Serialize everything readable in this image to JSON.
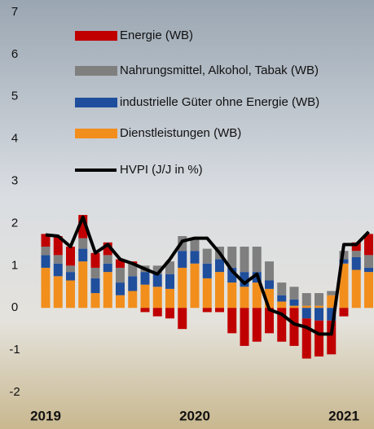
{
  "chart_data": {
    "type": "bar",
    "categories": [
      "2019",
      null,
      null,
      null,
      null,
      null,
      null,
      null,
      null,
      null,
      null,
      null,
      "2020",
      null,
      null,
      null,
      null,
      null,
      null,
      null,
      null,
      null,
      null,
      null,
      "2021",
      null,
      null
    ],
    "series": [
      {
        "name": "Energie (WB)",
        "color": "#c00000",
        "values": [
          0.3,
          0.45,
          0.45,
          0.55,
          0.35,
          0.3,
          0.2,
          0.05,
          -0.1,
          -0.2,
          -0.25,
          -0.5,
          0.0,
          -0.1,
          -0.1,
          -0.6,
          -0.9,
          -0.8,
          -0.6,
          -0.8,
          -0.9,
          -0.95,
          -0.85,
          -0.8,
          -0.2,
          0.2,
          0.5
        ]
      },
      {
        "name": "Nahrungsmittel, Alkohol, Tabak (WB)",
        "color": "#7f7f7f",
        "values": [
          0.2,
          0.2,
          0.15,
          0.25,
          0.25,
          0.2,
          0.35,
          0.3,
          0.15,
          0.2,
          0.3,
          0.35,
          0.3,
          0.35,
          0.3,
          0.5,
          0.6,
          0.6,
          0.45,
          0.3,
          0.3,
          0.3,
          0.3,
          0.1,
          0.2,
          0.15,
          0.3
        ]
      },
      {
        "name": "industrielle Güter ohne Energie (WB)",
        "color": "#1f4e9c",
        "values": [
          0.3,
          0.3,
          0.2,
          0.3,
          0.35,
          0.2,
          0.3,
          0.35,
          0.3,
          0.3,
          0.35,
          0.4,
          0.3,
          0.35,
          0.3,
          0.35,
          0.35,
          0.25,
          0.2,
          0.15,
          0.15,
          -0.25,
          -0.3,
          -0.3,
          0.1,
          0.3,
          0.1
        ]
      },
      {
        "name": "Dienstleistungen (WB)",
        "color": "#f28e1c",
        "values": [
          0.95,
          0.75,
          0.65,
          1.1,
          0.35,
          0.85,
          0.3,
          0.4,
          0.55,
          0.5,
          0.45,
          0.95,
          1.05,
          0.7,
          0.85,
          0.6,
          0.5,
          0.6,
          0.45,
          0.15,
          0.05,
          0.05,
          0.05,
          0.3,
          1.05,
          0.9,
          0.85
        ]
      },
      {
        "name": "HVPI (J/J in %)",
        "color": "#000000",
        "type": "line",
        "values": [
          1.73,
          1.7,
          1.45,
          2.15,
          1.3,
          1.5,
          1.15,
          1.05,
          0.92,
          0.8,
          1.15,
          1.58,
          1.65,
          1.65,
          1.3,
          0.88,
          0.58,
          0.8,
          -0.04,
          -0.15,
          -0.38,
          -0.46,
          -0.62,
          -0.62,
          1.5,
          1.5,
          1.8
        ]
      }
    ],
    "ylim": [
      -2,
      7
    ],
    "yticks": [
      -2,
      -1,
      0,
      1,
      2,
      3,
      4,
      5,
      6,
      7
    ]
  }
}
